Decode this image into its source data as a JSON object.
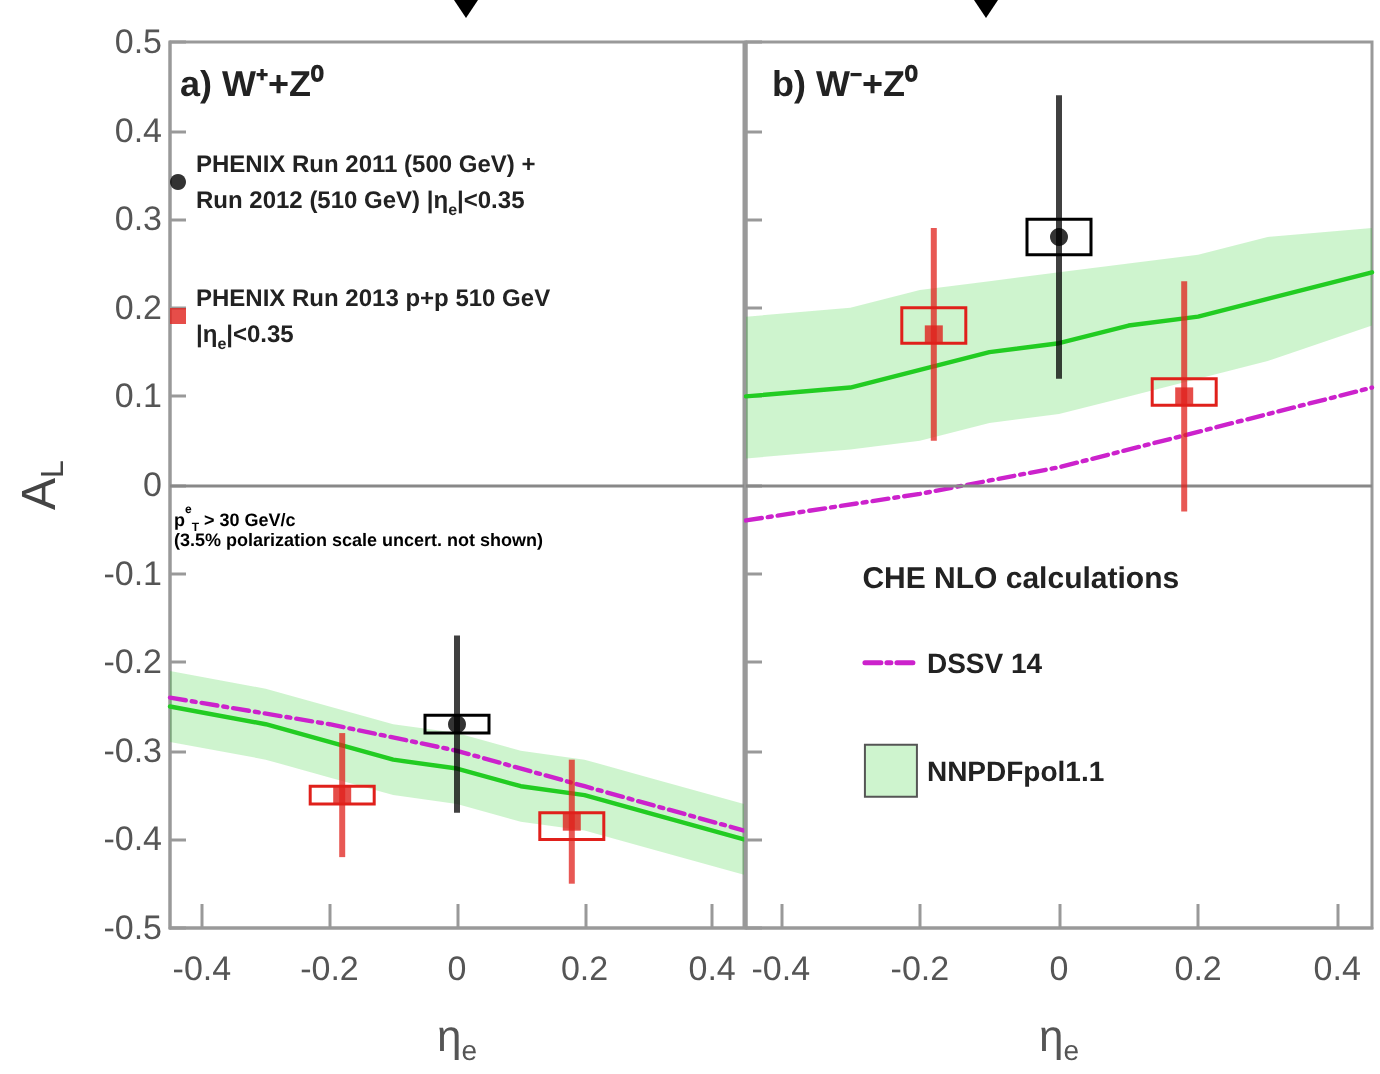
{
  "chart_data": [
    {
      "type": "scatter",
      "title": "a) W⁺+Z⁰",
      "xlabel": "η$_{e}$",
      "ylabel": "A$_{L}$",
      "xlim": [
        -0.45,
        0.45
      ],
      "xticks": [
        -0.4,
        -0.2,
        0,
        0.2,
        0.4
      ],
      "ylim": [
        -0.5,
        0.5
      ],
      "yticks": [
        -0.5,
        -0.4,
        -0.3,
        -0.2,
        -0.1,
        0,
        0.1,
        0.2,
        0.3,
        0.4,
        0.5
      ],
      "grid": false,
      "legend": "top left",
      "annotations": [
        "p$^{e}$$_{T}$ > 30 GeV/c",
        "(3.5% polarization scale uncert. not shown)"
      ],
      "ref_lines": [
        {
          "axis": "y",
          "value": 0,
          "color": "#888888"
        }
      ],
      "series": [
        {
          "type": "line",
          "color": "#22cc22",
          "marker": "none",
          "line_style": "solid",
          "x": [
            -0.45,
            -0.3,
            -0.2,
            -0.1,
            0,
            0.1,
            0.2,
            0.3,
            0.45
          ],
          "values": [
            -0.25,
            -0.27,
            -0.29,
            -0.31,
            -0.32,
            -0.34,
            -0.35,
            -0.37,
            -0.4
          ],
          "upper": [
            -0.21,
            -0.23,
            -0.25,
            -0.27,
            -0.28,
            -0.3,
            -0.31,
            -0.33,
            -0.36
          ],
          "lower": [
            -0.29,
            -0.31,
            -0.33,
            -0.35,
            -0.36,
            -0.38,
            -0.39,
            -0.41,
            -0.44
          ]
        },
        {
          "type": "line",
          "color": "#cc22cc",
          "marker": "none",
          "line_style": "dashed",
          "x": [
            -0.45,
            -0.2,
            0,
            0.2,
            0.45
          ],
          "values": [
            -0.24,
            -0.27,
            -0.3,
            -0.34,
            -0.39
          ]
        },
        {
          "type": "bar",
          "color": "#000000",
          "x": [
            0
          ],
          "base": [
            -0.28
          ],
          "values": [
            0.02
          ]
        },
        {
          "type": "bar",
          "color": "#e0201b",
          "x": [
            -0.18,
            0.18
          ],
          "base": [
            -0.36,
            -0.4
          ],
          "values": [
            0.02,
            0.03
          ]
        },
        {
          "name": "PHENIX Run 2011 (500 GeV) + Run 2012 (510 GeV) |η$_{e}$|<0.35",
          "marker": "circle",
          "color": "#000000",
          "x": [
            0
          ],
          "values": [
            -0.27
          ],
          "errors": [
            0.1
          ]
        },
        {
          "name": "PHENIX Run 2013 p+p 510 GeV |η$_{e}$|<0.35",
          "marker": "square",
          "color": "#e0201b",
          "x": [
            -0.18,
            0.18
          ],
          "values": [
            -0.35,
            -0.38
          ],
          "errors": [
            0.07,
            0.07
          ]
        }
      ]
    },
    {
      "type": "scatter",
      "title": "b) W⁻+Z⁰",
      "xlabel": "η$_{e}$",
      "legend_title": "CHE NLO calculations",
      "xlim": [
        -0.45,
        0.45
      ],
      "xticks": [
        -0.4,
        -0.2,
        0,
        0.2,
        0.4
      ],
      "ylim": [
        -0.5,
        0.5
      ],
      "yticks": [
        -0.5,
        -0.4,
        -0.3,
        -0.2,
        -0.1,
        0,
        0.1,
        0.2,
        0.3,
        0.4,
        0.5
      ],
      "tick_labels": "x",
      "grid": false,
      "legend": "bottom",
      "ref_lines": [
        {
          "axis": "y",
          "value": 0,
          "color": "#888888"
        }
      ],
      "series": [
        {
          "name": "DSSV 14",
          "type": "line",
          "color": "#cc22cc",
          "marker": "none",
          "line_style": "dashed",
          "x": [
            -0.45,
            -0.2,
            0,
            0.2,
            0.45
          ],
          "values": [
            -0.04,
            -0.01,
            0.02,
            0.06,
            0.11
          ]
        },
        {
          "name": "NNPDFpol1.1",
          "type": "line",
          "color": "#22cc22",
          "marker": "none",
          "line_style": "solid",
          "x": [
            -0.45,
            -0.3,
            -0.2,
            -0.1,
            0,
            0.1,
            0.2,
            0.3,
            0.45
          ],
          "values": [
            0.1,
            0.11,
            0.13,
            0.15,
            0.16,
            0.18,
            0.19,
            0.21,
            0.24
          ],
          "upper": [
            0.19,
            0.2,
            0.22,
            0.23,
            0.24,
            0.25,
            0.26,
            0.28,
            0.29
          ],
          "lower": [
            0.03,
            0.04,
            0.05,
            0.07,
            0.08,
            0.1,
            0.12,
            0.14,
            0.18
          ]
        },
        {
          "type": "bar",
          "color": "#000000",
          "x": [
            0
          ],
          "base": [
            0.26
          ],
          "values": [
            0.04
          ]
        },
        {
          "type": "bar",
          "color": "#e0201b",
          "x": [
            -0.18,
            0.18
          ],
          "base": [
            0.16,
            0.09
          ],
          "values": [
            0.04,
            0.03
          ]
        },
        {
          "marker": "circle",
          "color": "#000000",
          "x": [
            0
          ],
          "values": [
            0.28
          ],
          "errors": [
            0.16
          ]
        },
        {
          "marker": "square",
          "color": "#e0201b",
          "x": [
            -0.18,
            0.18
          ],
          "values": [
            0.17,
            0.1
          ],
          "errors": [
            0.12,
            0.13
          ]
        }
      ]
    }
  ]
}
